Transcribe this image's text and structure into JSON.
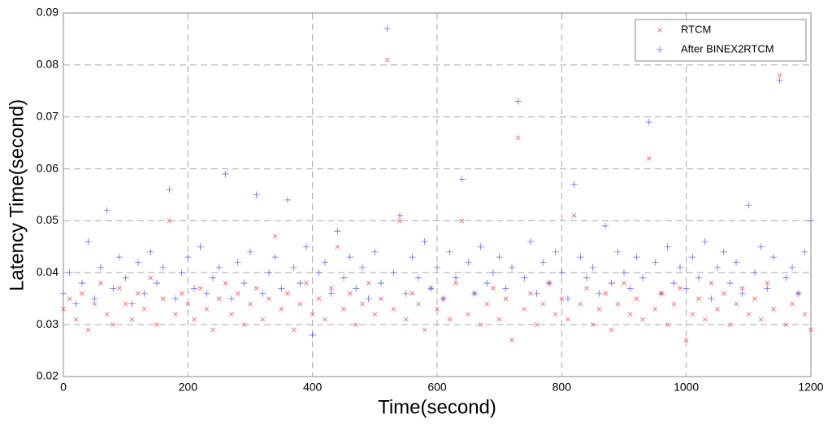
{
  "chart_data": {
    "type": "scatter",
    "xlabel": "Time(second)",
    "ylabel": "Latency Time(second)",
    "xlim": [
      0,
      1200
    ],
    "xticks": [
      0,
      200,
      400,
      600,
      800,
      1000,
      1200
    ],
    "ylim": [
      0.02,
      0.09
    ],
    "yticks": [
      0.02,
      0.03,
      0.04,
      0.05,
      0.06,
      0.07,
      0.08,
      0.09
    ],
    "grid": true,
    "legend": "upper right",
    "x": [
      0,
      10,
      20,
      30,
      40,
      50,
      60,
      70,
      80,
      90,
      100,
      110,
      120,
      130,
      140,
      150,
      160,
      170,
      180,
      190,
      200,
      210,
      220,
      230,
      240,
      250,
      260,
      270,
      280,
      290,
      300,
      310,
      320,
      330,
      340,
      350,
      360,
      370,
      380,
      390,
      400,
      410,
      420,
      430,
      440,
      450,
      460,
      470,
      480,
      490,
      500,
      510,
      520,
      530,
      540,
      550,
      560,
      570,
      580,
      590,
      600,
      610,
      620,
      630,
      640,
      650,
      660,
      670,
      680,
      690,
      700,
      710,
      720,
      730,
      740,
      750,
      760,
      770,
      780,
      790,
      800,
      810,
      820,
      830,
      840,
      850,
      860,
      870,
      880,
      890,
      900,
      910,
      920,
      930,
      940,
      950,
      960,
      970,
      980,
      990,
      1000,
      1010,
      1020,
      1030,
      1040,
      1050,
      1060,
      1070,
      1080,
      1090,
      1100,
      1110,
      1120,
      1130,
      1140,
      1150,
      1160,
      1170,
      1180,
      1190,
      1200
    ],
    "series": [
      {
        "name": "RTCM",
        "color": "#ff5050",
        "marker": "x",
        "values": [
          0.033,
          0.035,
          0.031,
          0.036,
          0.029,
          0.034,
          0.038,
          0.032,
          0.03,
          0.037,
          0.034,
          0.031,
          0.036,
          0.033,
          0.039,
          0.03,
          0.035,
          0.05,
          0.032,
          0.036,
          0.034,
          0.031,
          0.037,
          0.033,
          0.029,
          0.035,
          0.038,
          0.032,
          0.036,
          0.03,
          0.034,
          0.037,
          0.031,
          0.035,
          0.047,
          0.033,
          0.036,
          0.029,
          0.034,
          0.038,
          0.032,
          0.035,
          0.031,
          0.037,
          0.045,
          0.033,
          0.036,
          0.03,
          0.034,
          0.038,
          0.032,
          0.035,
          0.081,
          0.033,
          0.05,
          0.031,
          0.036,
          0.034,
          0.029,
          0.037,
          0.033,
          0.035,
          0.031,
          0.038,
          0.05,
          0.032,
          0.036,
          0.03,
          0.034,
          0.037,
          0.031,
          0.035,
          0.027,
          0.066,
          0.033,
          0.036,
          0.03,
          0.034,
          0.038,
          0.032,
          0.035,
          0.031,
          0.051,
          0.034,
          0.037,
          0.03,
          0.033,
          0.036,
          0.029,
          0.034,
          0.038,
          0.032,
          0.035,
          0.031,
          0.062,
          0.033,
          0.036,
          0.03,
          0.034,
          0.037,
          0.027,
          0.032,
          0.035,
          0.031,
          0.038,
          0.033,
          0.036,
          0.03,
          0.034,
          0.037,
          0.032,
          0.035,
          0.031,
          0.038,
          0.033,
          0.078,
          0.03,
          0.034,
          0.036,
          0.032,
          0.029
        ]
      },
      {
        "name": "After BINEX2RTCM",
        "color": "#6666ff",
        "marker": "+",
        "values": [
          0.036,
          0.04,
          0.034,
          0.038,
          0.046,
          0.035,
          0.041,
          0.052,
          0.037,
          0.043,
          0.039,
          0.034,
          0.042,
          0.036,
          0.044,
          0.038,
          0.041,
          0.056,
          0.035,
          0.04,
          0.043,
          0.037,
          0.045,
          0.036,
          0.039,
          0.041,
          0.059,
          0.035,
          0.042,
          0.038,
          0.044,
          0.055,
          0.036,
          0.04,
          0.043,
          0.037,
          0.054,
          0.041,
          0.038,
          0.045,
          0.028,
          0.04,
          0.042,
          0.036,
          0.048,
          0.039,
          0.043,
          0.037,
          0.041,
          0.035,
          0.044,
          0.038,
          0.087,
          0.04,
          0.051,
          0.036,
          0.043,
          0.039,
          0.046,
          0.037,
          0.041,
          0.035,
          0.044,
          0.039,
          0.058,
          0.042,
          0.036,
          0.045,
          0.038,
          0.04,
          0.043,
          0.037,
          0.041,
          0.073,
          0.039,
          0.046,
          0.036,
          0.042,
          0.038,
          0.044,
          0.04,
          0.035,
          0.057,
          0.043,
          0.039,
          0.041,
          0.036,
          0.049,
          0.038,
          0.044,
          0.04,
          0.037,
          0.043,
          0.039,
          0.069,
          0.042,
          0.036,
          0.045,
          0.038,
          0.041,
          0.037,
          0.043,
          0.039,
          0.046,
          0.035,
          0.041,
          0.044,
          0.038,
          0.042,
          0.036,
          0.053,
          0.04,
          0.045,
          0.037,
          0.043,
          0.077,
          0.039,
          0.041,
          0.036,
          0.044,
          0.05
        ]
      }
    ]
  }
}
